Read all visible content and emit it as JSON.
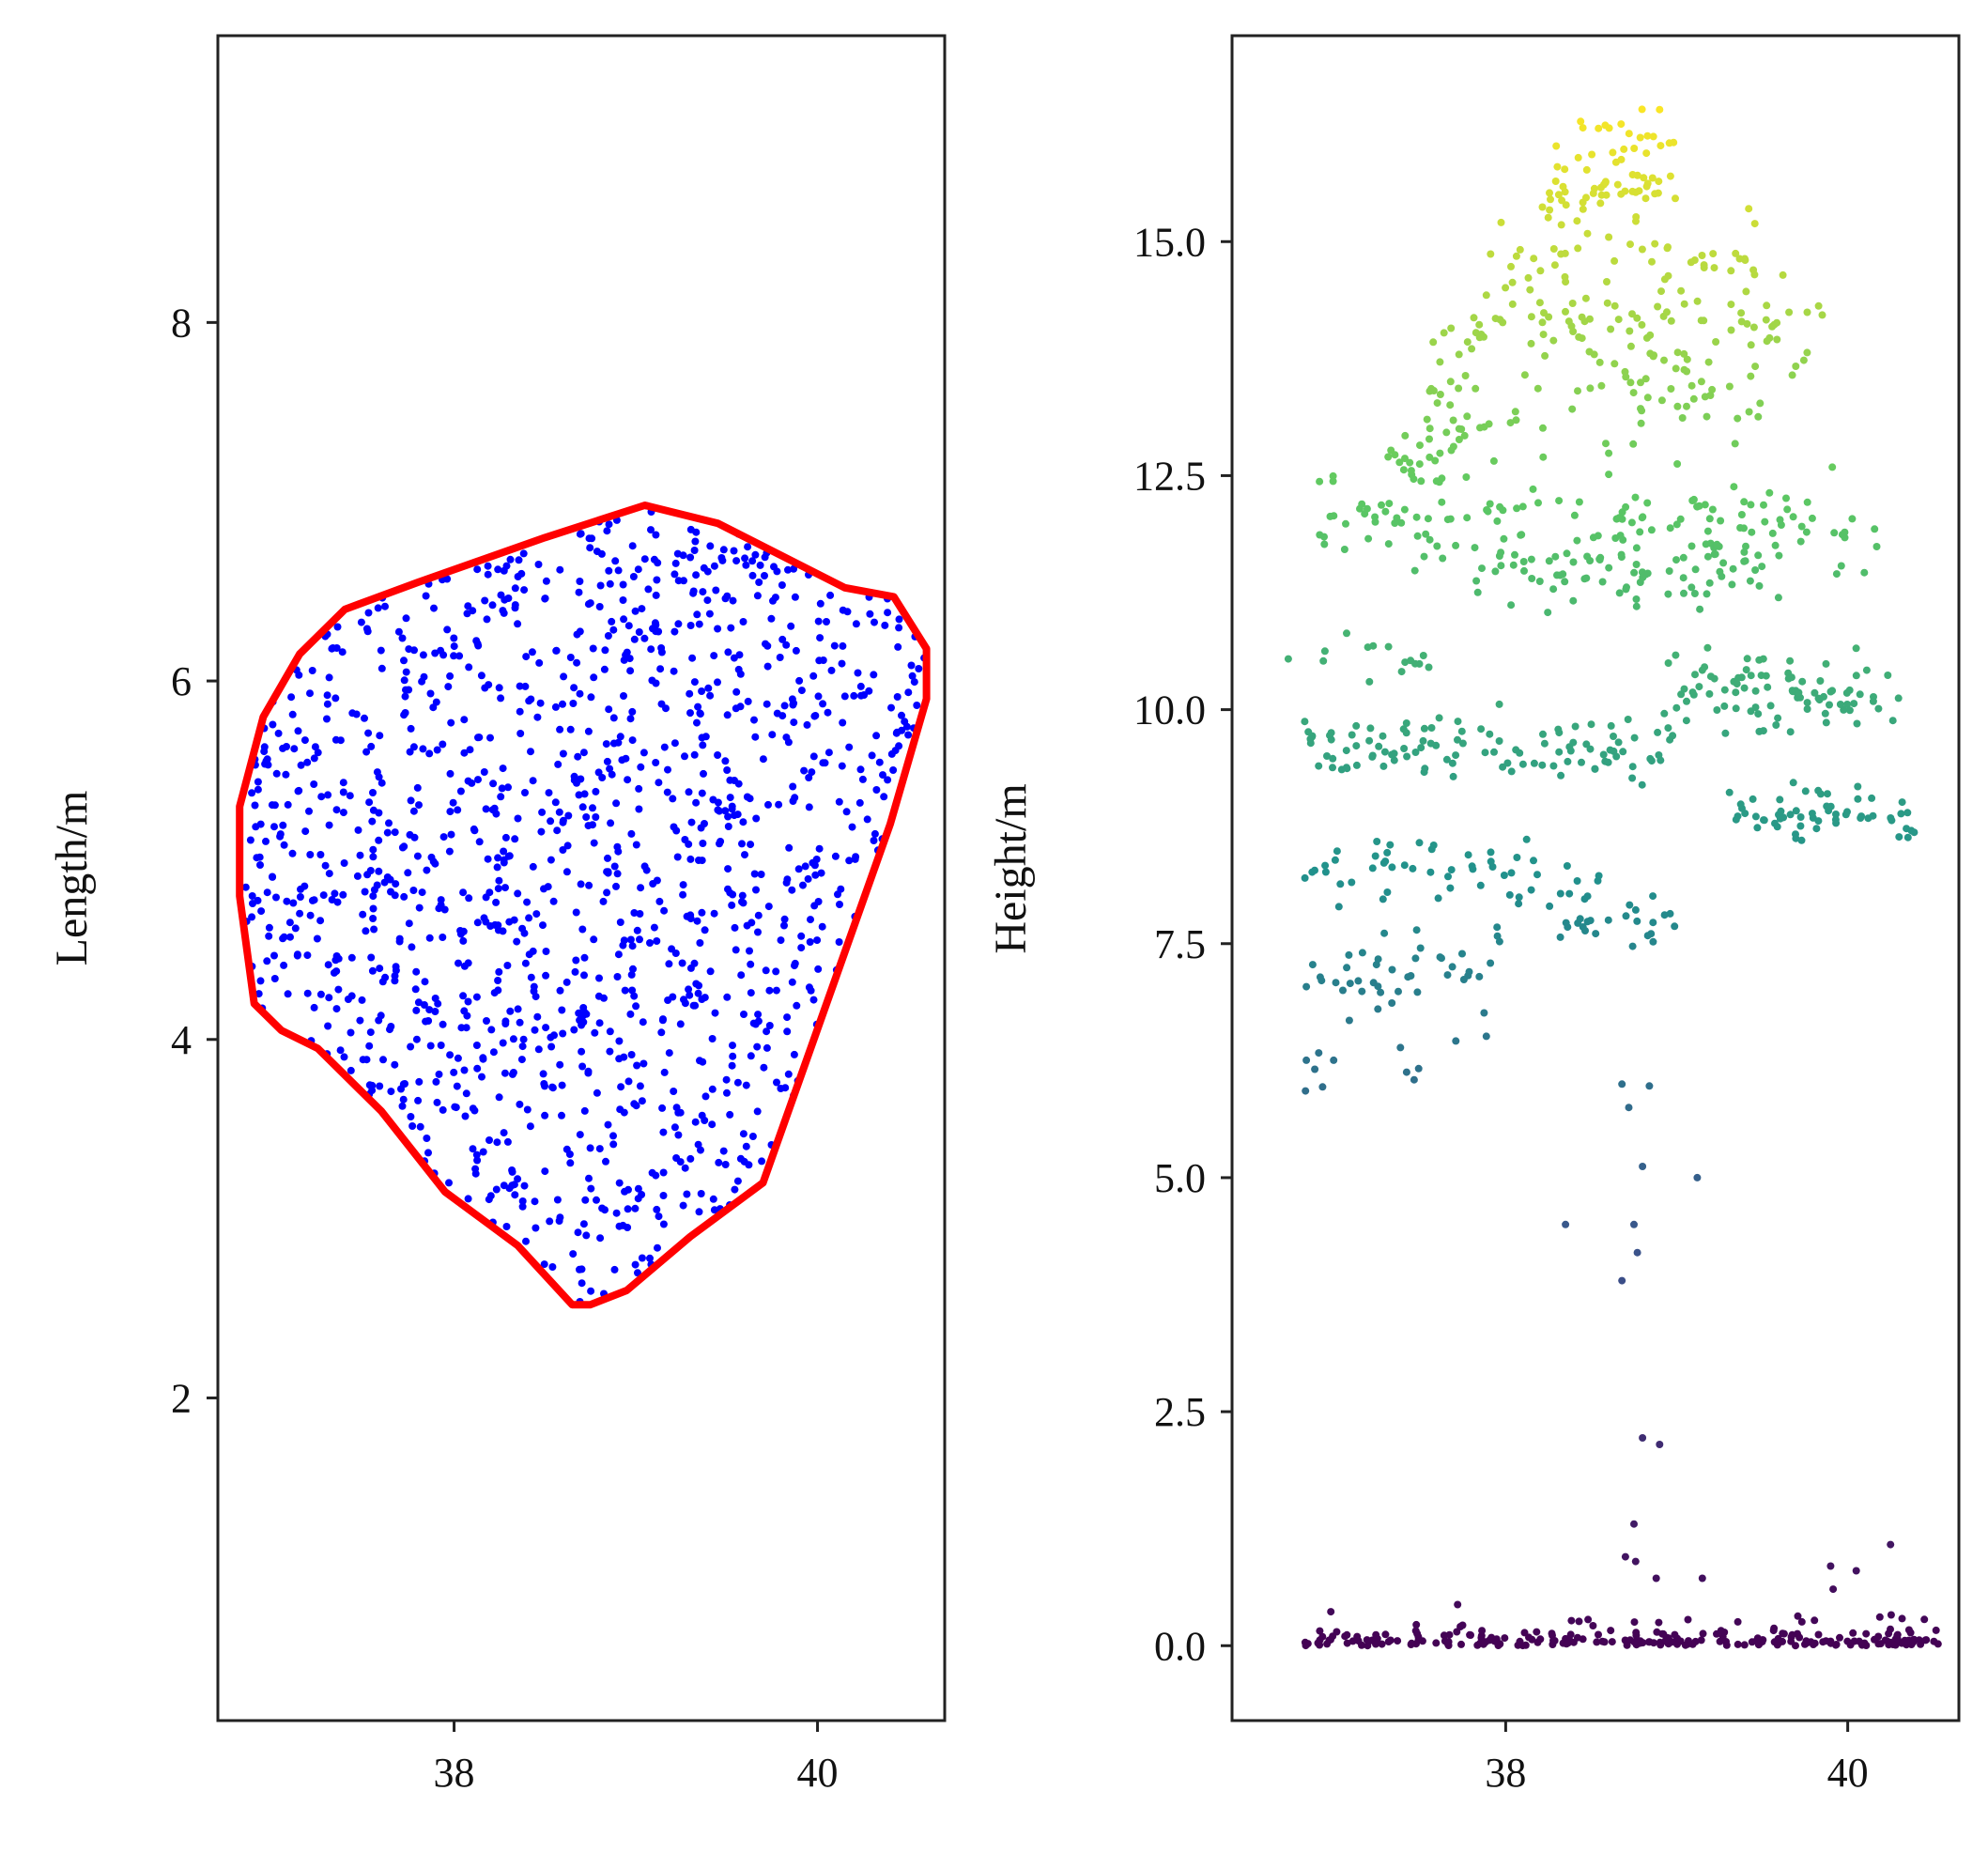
{
  "chart_data": [
    {
      "id": "left",
      "type": "scatter",
      "title": "",
      "xlabel": "",
      "ylabel": "Length/m",
      "xlim": [
        36.7,
        40.7
      ],
      "ylim": [
        0.2,
        9.6
      ],
      "grid": false,
      "xticks": [
        38,
        40
      ],
      "xtick_labels": [
        "38",
        "40"
      ],
      "yticks": [
        2,
        4,
        6,
        8
      ],
      "ytick_labels": [
        "2",
        "4",
        "6",
        "8"
      ],
      "point_color": "#0000ff",
      "hull_color": "#ff0000",
      "point_count": 1300,
      "point_seed": 11,
      "hull": [
        [
          39.05,
          6.98
        ],
        [
          39.45,
          6.88
        ],
        [
          40.15,
          6.52
        ],
        [
          40.42,
          6.47
        ],
        [
          40.6,
          6.18
        ],
        [
          40.6,
          5.9
        ],
        [
          40.4,
          5.2
        ],
        [
          39.7,
          3.2
        ],
        [
          39.3,
          2.9
        ],
        [
          38.95,
          2.6
        ],
        [
          38.75,
          2.52
        ],
        [
          38.65,
          2.52
        ],
        [
          38.35,
          2.85
        ],
        [
          37.95,
          3.15
        ],
        [
          37.6,
          3.6
        ],
        [
          37.25,
          3.95
        ],
        [
          37.05,
          4.05
        ],
        [
          36.9,
          4.2
        ],
        [
          36.82,
          4.8
        ],
        [
          36.82,
          5.3
        ],
        [
          36.95,
          5.8
        ],
        [
          37.15,
          6.15
        ],
        [
          37.4,
          6.4
        ],
        [
          37.8,
          6.55
        ],
        [
          38.5,
          6.8
        ]
      ]
    },
    {
      "id": "right",
      "type": "scatter",
      "title": "",
      "xlabel": "",
      "ylabel": "Height/m",
      "xlim": [
        36.4,
        40.65
      ],
      "ylim": [
        -0.8,
        17.2
      ],
      "grid": false,
      "xticks": [
        38,
        40
      ],
      "xtick_labels": [
        "38",
        "40"
      ],
      "yticks": [
        0.0,
        2.5,
        5.0,
        7.5,
        10.0,
        12.5,
        15.0
      ],
      "ytick_labels": [
        "0.0",
        "2.5",
        "5.0",
        "7.5",
        "10.0",
        "12.5",
        "15.0"
      ],
      "colormap": [
        "#440154",
        "#3b528b",
        "#21918c",
        "#5ec962",
        "#fde725"
      ],
      "color_range": [
        0,
        16.5
      ],
      "point_seed": 29,
      "trunk_points": [
        [
          38.68,
          6.0
        ],
        [
          38.72,
          5.75
        ],
        [
          38.84,
          5.98
        ],
        [
          38.8,
          5.12
        ],
        [
          39.12,
          5.0
        ],
        [
          38.35,
          4.5
        ],
        [
          38.75,
          4.5
        ],
        [
          38.77,
          4.2
        ],
        [
          38.68,
          3.9
        ],
        [
          38.8,
          2.22
        ],
        [
          38.9,
          2.15
        ],
        [
          38.75,
          1.3
        ],
        [
          38.7,
          0.95
        ],
        [
          38.76,
          0.9
        ],
        [
          38.88,
          0.72
        ],
        [
          39.15,
          0.72
        ],
        [
          40.25,
          1.08
        ],
        [
          39.9,
          0.85
        ],
        [
          40.05,
          0.8
        ]
      ],
      "layers": [
        {
          "y": 0.1,
          "spread": 0.12,
          "x": [
            36.8,
            40.6
          ],
          "n": 240
        },
        {
          "y": 0.45,
          "spread": 0.2,
          "x": [
            39.7,
            40.5
          ],
          "n": 12
        },
        {
          "y": 6.2,
          "spread": 0.2,
          "x": [
            36.8,
            37.8
          ],
          "n": 10
        },
        {
          "y": 7.2,
          "spread": 0.45,
          "x": [
            36.8,
            38.0
          ],
          "n": 45
        },
        {
          "y": 7.7,
          "spread": 0.25,
          "x": [
            38.3,
            39.0
          ],
          "n": 25
        },
        {
          "y": 8.3,
          "spread": 0.35,
          "x": [
            36.8,
            38.6
          ],
          "n": 55
        },
        {
          "y": 8.9,
          "spread": 0.25,
          "x": [
            39.3,
            40.4
          ],
          "n": 60
        },
        {
          "y": 9.6,
          "spread": 0.3,
          "x": [
            36.8,
            39.0
          ],
          "n": 110
        },
        {
          "y": 10.2,
          "spread": 0.35,
          "x": [
            38.9,
            40.3
          ],
          "n": 90
        },
        {
          "y": 10.5,
          "spread": 0.2,
          "x": [
            36.7,
            37.6
          ],
          "n": 15
        },
        {
          "y": 11.5,
          "spread": 0.35,
          "x": [
            37.8,
            39.6
          ],
          "n": 80
        },
        {
          "y": 12.0,
          "spread": 0.45,
          "x": [
            36.9,
            40.2
          ],
          "n": 130
        },
        {
          "y": 12.7,
          "spread": 0.25,
          "x": [
            37.3,
            37.8
          ],
          "n": 25
        },
        {
          "y": 13.3,
          "spread": 0.5,
          "x": [
            37.5,
            39.5
          ],
          "n": 80
        },
        {
          "y": 14.1,
          "spread": 0.4,
          "x": [
            37.6,
            39.9
          ],
          "n": 90
        },
        {
          "y": 14.8,
          "spread": 0.3,
          "x": [
            37.9,
            39.5
          ],
          "n": 45
        },
        {
          "y": 15.6,
          "spread": 0.35,
          "x": [
            38.2,
            39.0
          ],
          "n": 55
        },
        {
          "y": 16.2,
          "spread": 0.2,
          "x": [
            38.4,
            38.95
          ],
          "n": 15
        }
      ]
    }
  ]
}
